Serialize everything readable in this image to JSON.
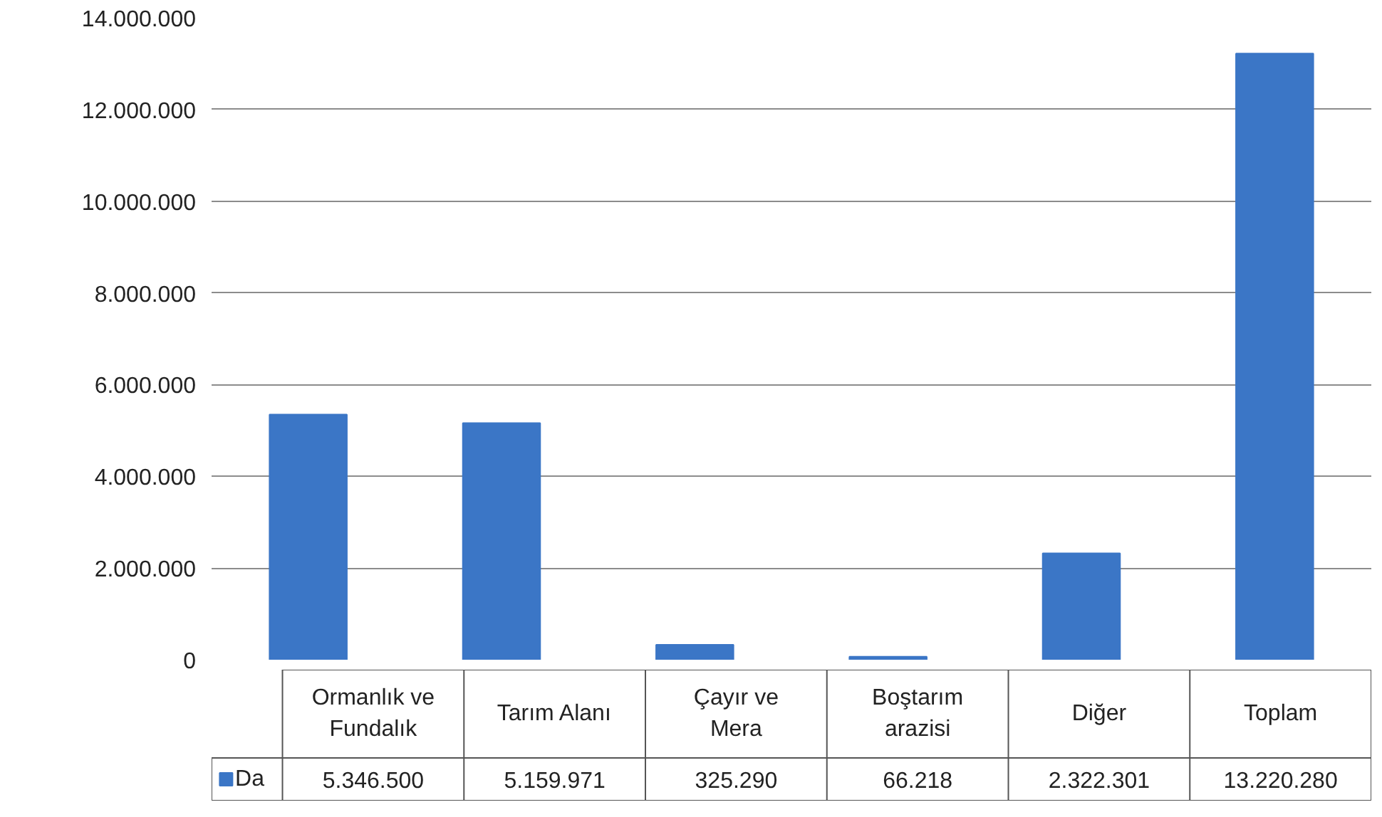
{
  "chart_data": {
    "type": "bar",
    "categories": [
      "Ormanlık ve Fundalık",
      "Tarım Alanı",
      "Çayır ve Mera",
      "Boştarım arazisi",
      "Diğer",
      "Toplam"
    ],
    "series": [
      {
        "name": "Da",
        "color": "#3b76c6",
        "values": [
          5346500,
          5159971,
          325290,
          66218,
          2322301,
          13220280
        ],
        "value_labels": [
          "5.346.500",
          "5.159.971",
          "325.290",
          "66.218",
          "2.322.301",
          "13.220.280"
        ]
      }
    ],
    "ylim": [
      0,
      14000000
    ],
    "yticks": [
      {
        "value": 0,
        "label": "0"
      },
      {
        "value": 2000000,
        "label": "2.000.000"
      },
      {
        "value": 4000000,
        "label": "4.000.000"
      },
      {
        "value": 6000000,
        "label": "6.000.000"
      },
      {
        "value": 8000000,
        "label": "8.000.000"
      },
      {
        "value": 10000000,
        "label": "10.000.000"
      },
      {
        "value": 12000000,
        "label": "12.000.000"
      },
      {
        "value": 14000000,
        "label": "14.000.000"
      }
    ],
    "grid": "y",
    "legend": "bottom"
  }
}
